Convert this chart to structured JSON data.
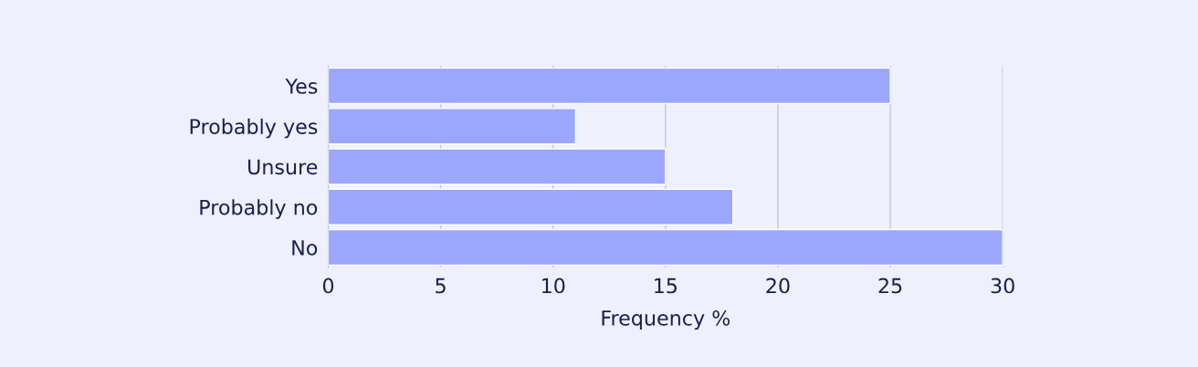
{
  "chart_data": {
    "type": "bar",
    "orientation": "horizontal",
    "xlabel": "Frequency %",
    "categories": [
      "Yes",
      "Probably yes",
      "Unsure",
      "Probably no",
      "No"
    ],
    "values": [
      25,
      11,
      15,
      18,
      30
    ],
    "color": "#9ba6fd",
    "xlim": [
      0,
      30
    ],
    "xticks": [
      0,
      5,
      10,
      15,
      20,
      25,
      30
    ],
    "grid": "x"
  }
}
